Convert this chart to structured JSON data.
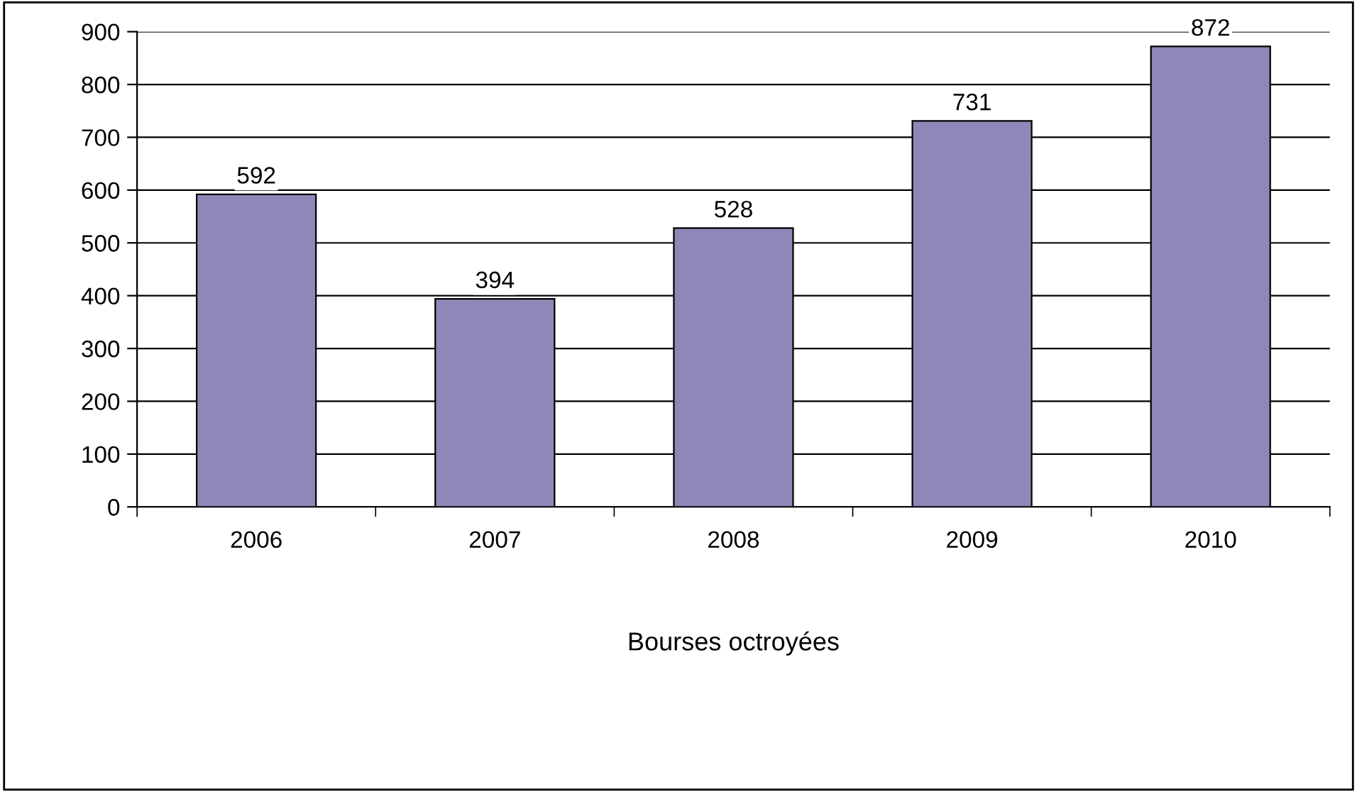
{
  "chart_data": {
    "type": "bar",
    "xlabel": "Bourses octroyées",
    "categories": [
      "2006",
      "2007",
      "2008",
      "2009",
      "2010"
    ],
    "values": [
      592,
      394,
      528,
      731,
      872
    ],
    "color": "#8e87b8",
    "ylim": [
      0,
      900
    ],
    "yticks": [
      0,
      100,
      200,
      300,
      400,
      500,
      600,
      700,
      800,
      900
    ],
    "grid": "y",
    "data_labels": true,
    "legend": false
  }
}
